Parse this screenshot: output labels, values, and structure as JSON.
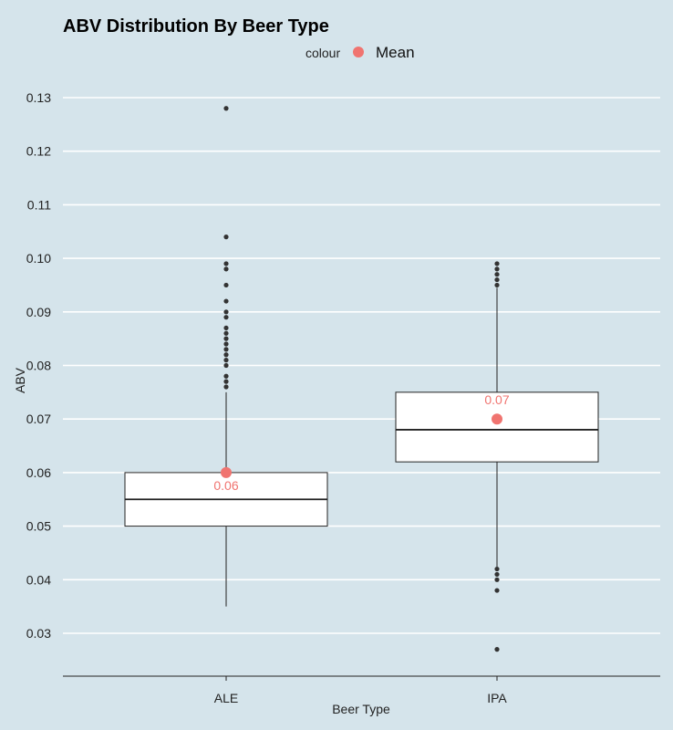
{
  "chart_data": {
    "type": "boxplot",
    "title": "ABV Distribution By Beer Type",
    "xlabel": "Beer Type",
    "ylabel": "ABV",
    "ylim": [
      0.022,
      0.1335
    ],
    "yticks": [
      "0.03",
      "0.04",
      "0.05",
      "0.06",
      "0.07",
      "0.08",
      "0.09",
      "0.10",
      "0.11",
      "0.12",
      "0.13"
    ],
    "categories": [
      "ALE",
      "IPA"
    ],
    "grid": true,
    "legend": {
      "title": "colour",
      "label": "Mean",
      "position": "top"
    },
    "colors": {
      "mean": "#f07470",
      "background": "#d5e4eb",
      "grid": "#ffffff",
      "box_fill": "#ffffff",
      "stroke": "#222222"
    },
    "boxes": [
      {
        "category": "ALE",
        "q1": 0.05,
        "median": 0.055,
        "q3": 0.06,
        "whisker_low": 0.035,
        "whisker_high": 0.075,
        "mean": 0.06,
        "mean_label": "0.06",
        "outliers": [
          0.076,
          0.077,
          0.078,
          0.08,
          0.081,
          0.082,
          0.083,
          0.084,
          0.085,
          0.086,
          0.087,
          0.089,
          0.09,
          0.092,
          0.095,
          0.098,
          0.099,
          0.104,
          0.128
        ]
      },
      {
        "category": "IPA",
        "q1": 0.062,
        "median": 0.068,
        "q3": 0.075,
        "whisker_low": 0.042,
        "whisker_high": 0.0945,
        "mean": 0.07,
        "mean_label": "0.07",
        "outliers": [
          0.027,
          0.038,
          0.04,
          0.041,
          0.042,
          0.095,
          0.096,
          0.097,
          0.098,
          0.099
        ]
      }
    ]
  }
}
